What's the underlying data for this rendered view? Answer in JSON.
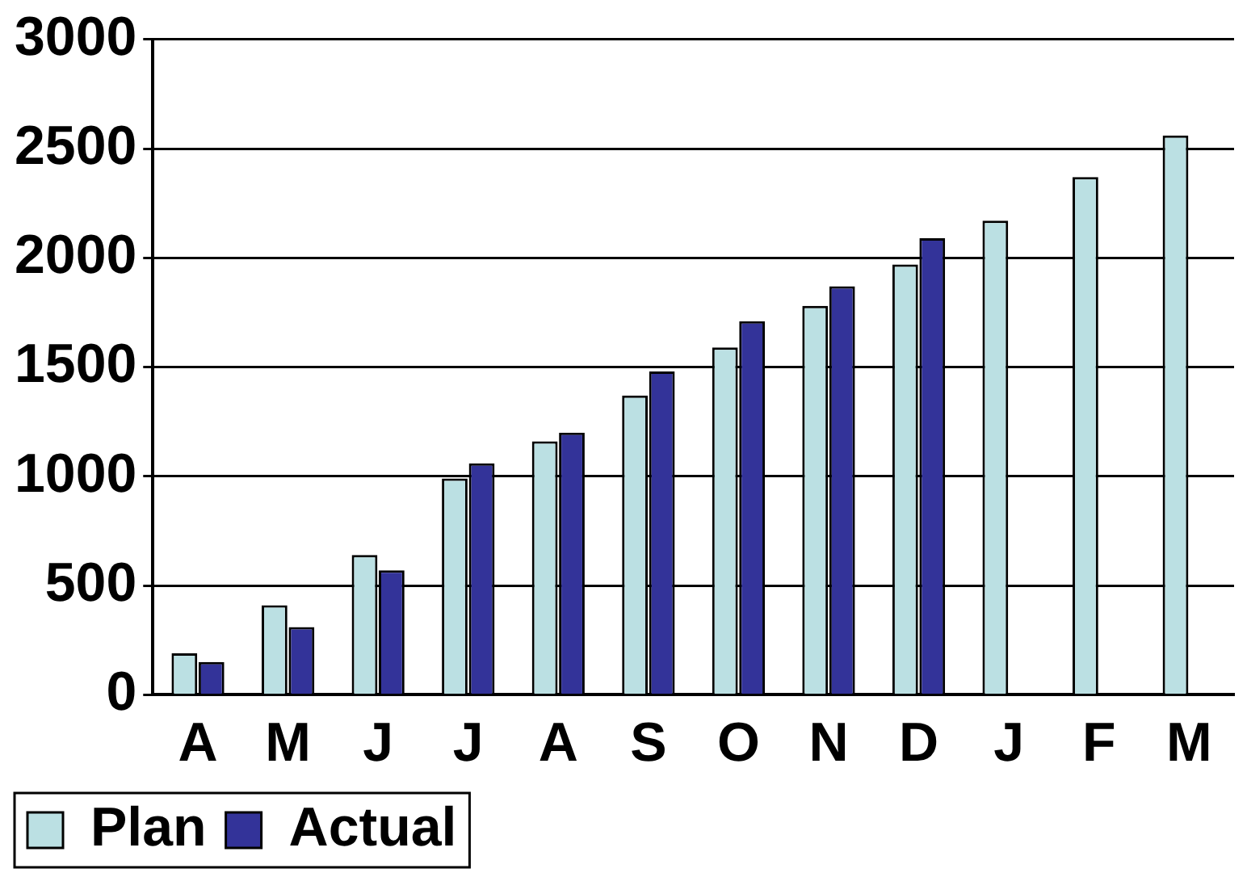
{
  "chart_data": {
    "type": "bar",
    "categories": [
      "A",
      "M",
      "J",
      "J",
      "A",
      "S",
      "O",
      "N",
      "D",
      "J",
      "F",
      "M"
    ],
    "series": [
      {
        "name": "Plan",
        "color": "#bbe0e3",
        "values": [
          190,
          410,
          640,
          990,
          1160,
          1370,
          1590,
          1780,
          1970,
          2170,
          2370,
          2560
        ]
      },
      {
        "name": "Actual",
        "color": "#333399",
        "values": [
          150,
          310,
          570,
          1060,
          1200,
          1480,
          1710,
          1870,
          2090,
          null,
          null,
          null
        ]
      }
    ],
    "ylim": [
      0,
      3000
    ],
    "yticks": [
      0,
      500,
      1000,
      1500,
      2000,
      2500,
      3000
    ],
    "grid": "y",
    "legend": "bottom left"
  }
}
